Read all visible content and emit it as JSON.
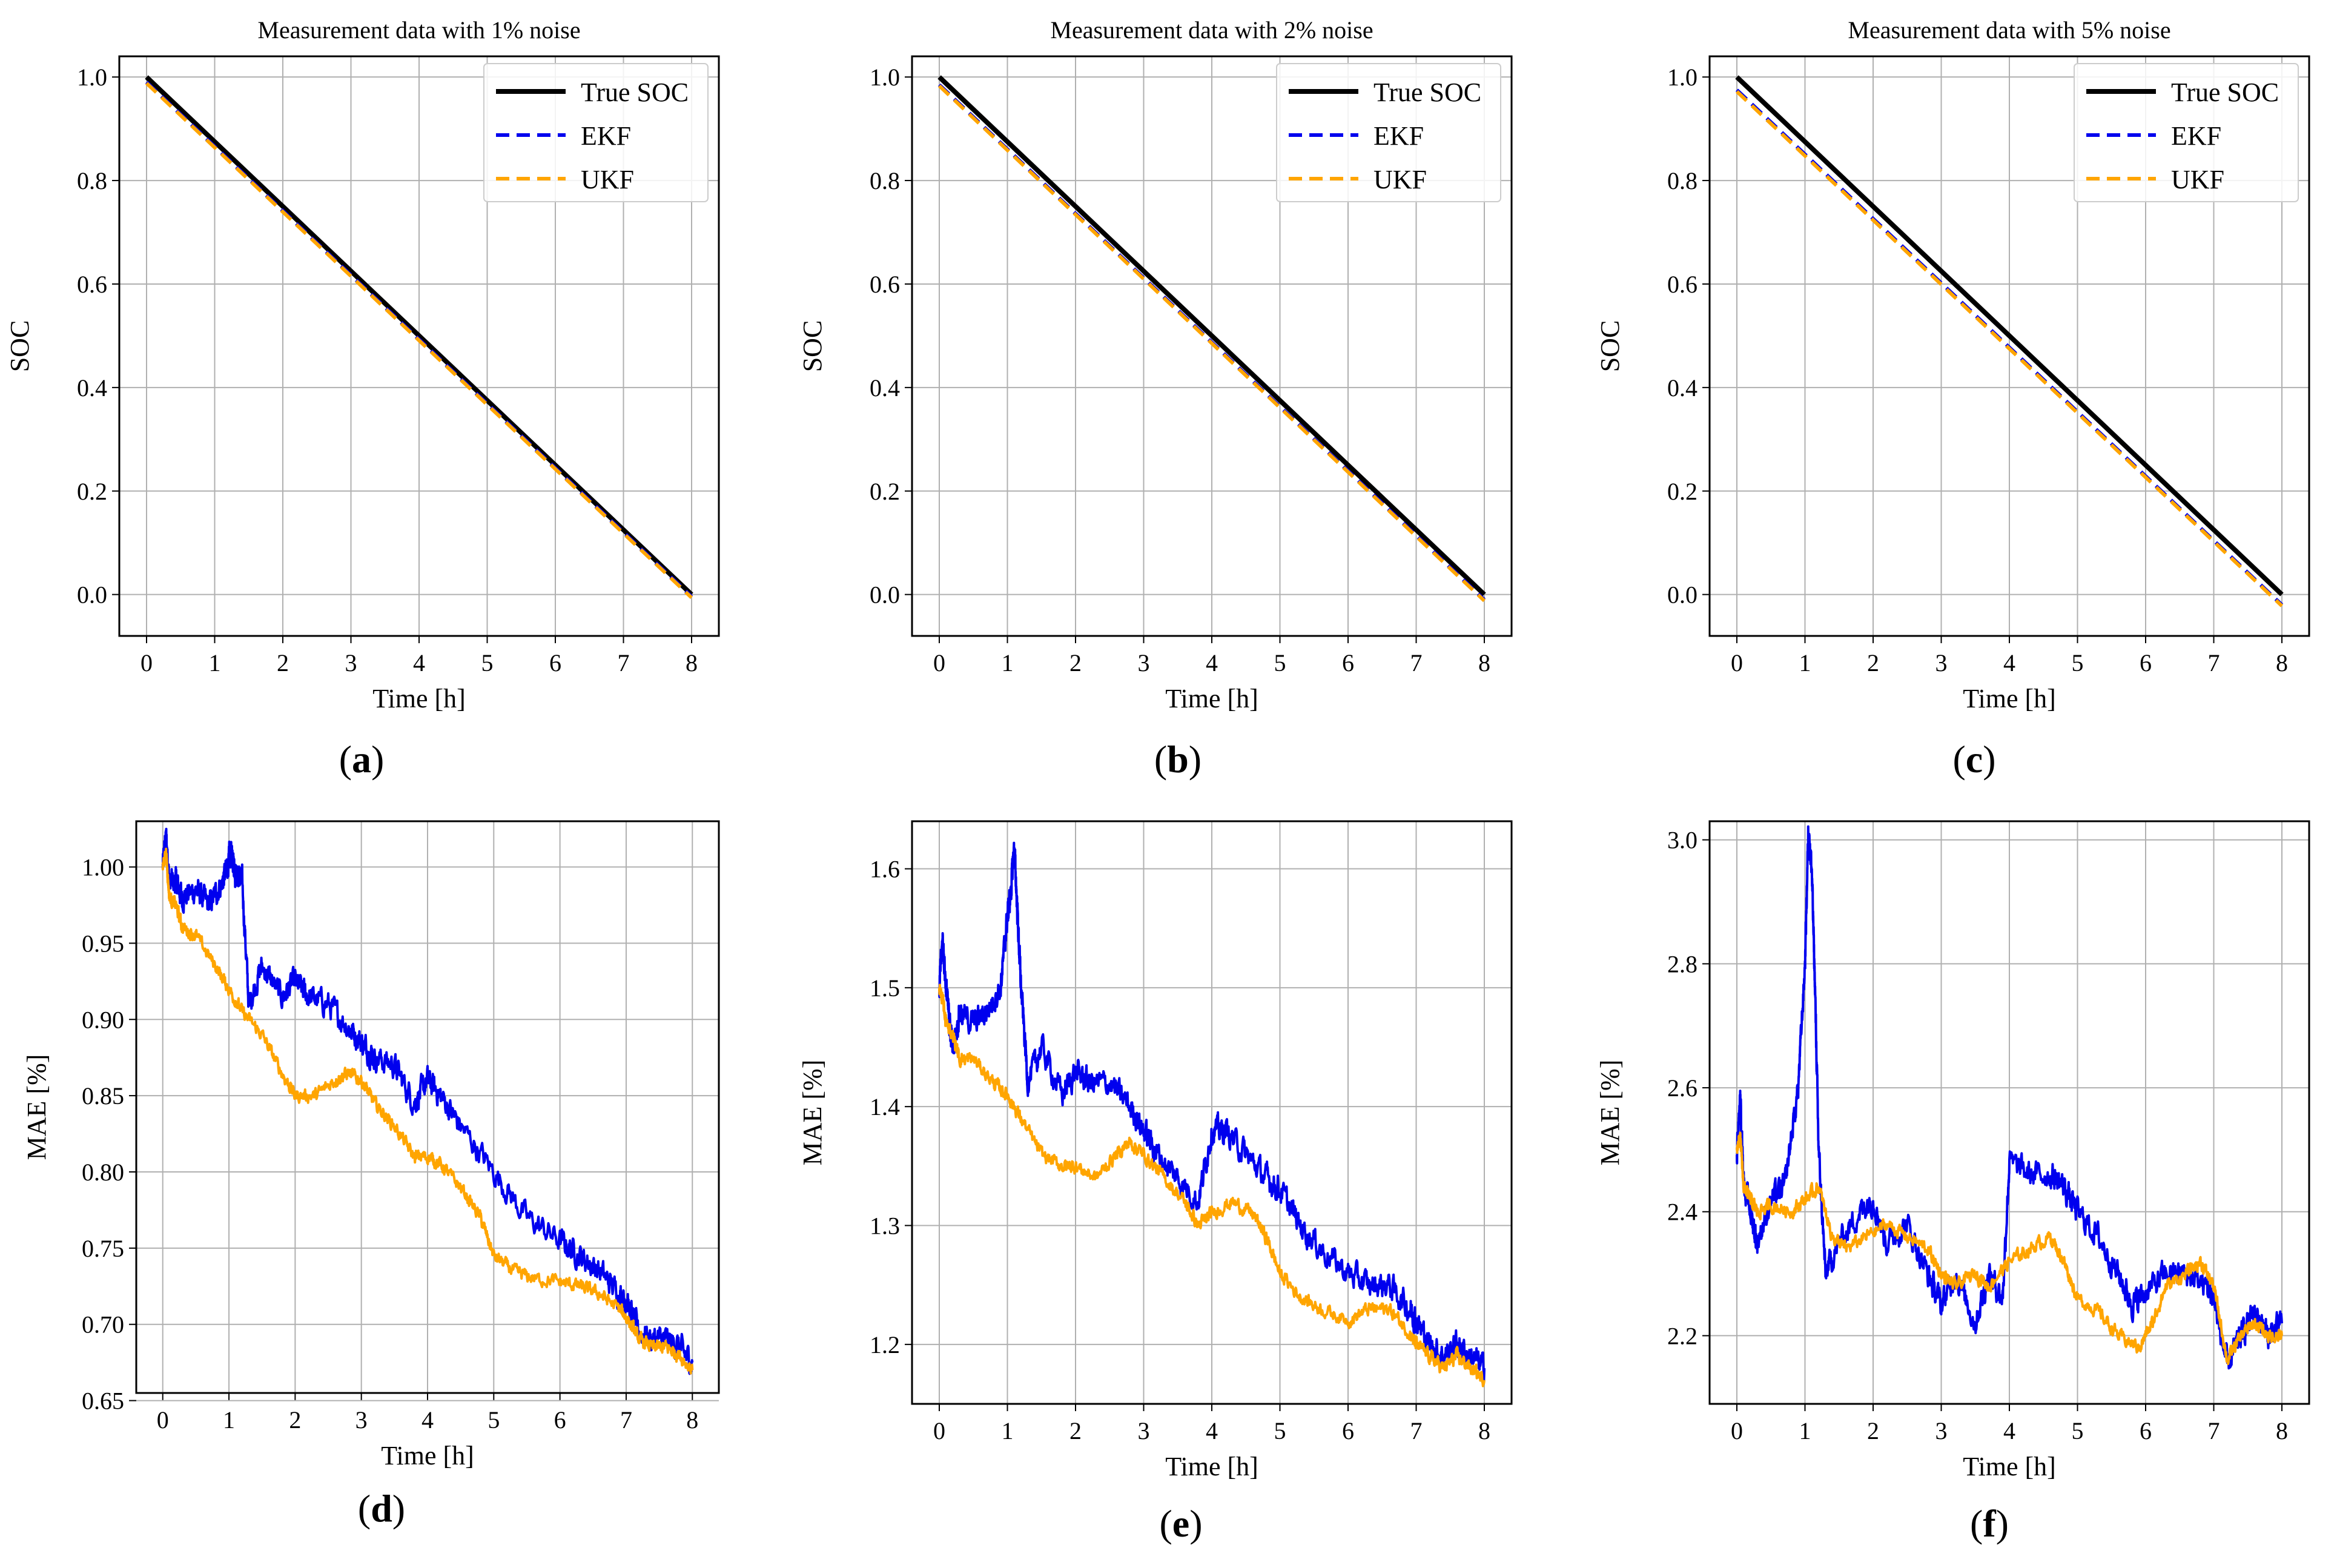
{
  "chart_data": [
    {
      "id": "a",
      "type": "line",
      "panel_label": "a",
      "title": "Measurement data with 1% noise",
      "xlabel": "Time [h]",
      "ylabel": "SOC",
      "xlim": [
        -0.4,
        8.4
      ],
      "ylim": [
        -0.08,
        1.04
      ],
      "xticks": [
        "0",
        "1",
        "2",
        "3",
        "4",
        "5",
        "6",
        "7",
        "8"
      ],
      "yticks": [
        "0.0",
        "0.2",
        "0.4",
        "0.6",
        "0.8",
        "1.0"
      ],
      "grid": true,
      "legend": "top-right",
      "series": [
        {
          "name": "True SOC",
          "color": "#000000",
          "style": "solid",
          "x": [
            0,
            8
          ],
          "y": [
            1.0,
            0.0
          ]
        },
        {
          "name": "EKF",
          "color": "#0000ee",
          "style": "dashed",
          "x": [
            0,
            8
          ],
          "y": [
            0.99,
            -0.004
          ]
        },
        {
          "name": "UKF",
          "color": "#ffa500",
          "style": "dashed",
          "x": [
            0,
            8
          ],
          "y": [
            0.988,
            -0.006
          ]
        }
      ]
    },
    {
      "id": "b",
      "type": "line",
      "panel_label": "b",
      "title": "Measurement data with 2% noise",
      "xlabel": "Time [h]",
      "ylabel": "SOC",
      "xlim": [
        -0.4,
        8.4
      ],
      "ylim": [
        -0.08,
        1.04
      ],
      "xticks": [
        "0",
        "1",
        "2",
        "3",
        "4",
        "5",
        "6",
        "7",
        "8"
      ],
      "yticks": [
        "0.0",
        "0.2",
        "0.4",
        "0.6",
        "0.8",
        "1.0"
      ],
      "grid": true,
      "legend": "top-right",
      "series": [
        {
          "name": "True SOC",
          "color": "#000000",
          "style": "solid",
          "x": [
            0,
            8
          ],
          "y": [
            1.0,
            0.0
          ]
        },
        {
          "name": "EKF",
          "color": "#0000ee",
          "style": "dashed",
          "x": [
            0,
            8
          ],
          "y": [
            0.985,
            -0.01
          ]
        },
        {
          "name": "UKF",
          "color": "#ffa500",
          "style": "dashed",
          "x": [
            0,
            8
          ],
          "y": [
            0.983,
            -0.012
          ]
        }
      ]
    },
    {
      "id": "c",
      "type": "line",
      "panel_label": "c",
      "title": "Measurement data with 5% noise",
      "xlabel": "Time [h]",
      "ylabel": "SOC",
      "xlim": [
        -0.4,
        8.4
      ],
      "ylim": [
        -0.08,
        1.04
      ],
      "xticks": [
        "0",
        "1",
        "2",
        "3",
        "4",
        "5",
        "6",
        "7",
        "8"
      ],
      "yticks": [
        "0.0",
        "0.2",
        "0.4",
        "0.6",
        "0.8",
        "1.0"
      ],
      "grid": true,
      "legend": "top-right",
      "series": [
        {
          "name": "True SOC",
          "color": "#000000",
          "style": "solid",
          "x": [
            0,
            8
          ],
          "y": [
            1.0,
            0.0
          ]
        },
        {
          "name": "EKF",
          "color": "#0000ee",
          "style": "dashed",
          "x": [
            0,
            8
          ],
          "y": [
            0.975,
            -0.02
          ]
        },
        {
          "name": "UKF",
          "color": "#ffa500",
          "style": "dashed",
          "x": [
            0,
            8
          ],
          "y": [
            0.972,
            -0.022
          ]
        }
      ]
    },
    {
      "id": "d",
      "type": "line",
      "panel_label": "d",
      "title": "",
      "xlabel": "Time [h]",
      "ylabel": "MAE [%]",
      "xlim": [
        -0.4,
        8.4
      ],
      "ylim": [
        0.655,
        1.03
      ],
      "xticks": [
        "0",
        "1",
        "2",
        "3",
        "4",
        "5",
        "6",
        "7",
        "8"
      ],
      "yticks": [
        "0.65",
        "0.70",
        "0.75",
        "0.80",
        "0.85",
        "0.90",
        "0.95",
        "1.00"
      ],
      "grid": true,
      "legend": "none",
      "series": [
        {
          "name": "EKF",
          "color": "#0000ee",
          "style": "solid",
          "x": [
            0,
            0.05,
            0.1,
            0.2,
            0.3,
            0.5,
            0.7,
            0.9,
            1.0,
            1.05,
            1.1,
            1.2,
            1.3,
            1.5,
            1.8,
            2.0,
            2.2,
            2.5,
            2.8,
            3.0,
            3.2,
            3.5,
            3.8,
            4.0,
            4.2,
            4.5,
            5.0,
            5.5,
            6.0,
            6.3,
            6.6,
            6.9,
            7.0,
            7.2,
            7.4,
            7.6,
            7.8,
            8.0
          ],
          "y": [
            1.0,
            1.02,
            0.99,
            0.99,
            0.98,
            0.985,
            0.975,
            0.99,
            1.005,
            1.01,
            0.995,
            0.99,
            0.91,
            0.935,
            0.915,
            0.925,
            0.915,
            0.91,
            0.895,
            0.885,
            0.875,
            0.87,
            0.845,
            0.86,
            0.85,
            0.83,
            0.8,
            0.77,
            0.755,
            0.745,
            0.735,
            0.72,
            0.715,
            0.695,
            0.69,
            0.69,
            0.685,
            0.675
          ]
        },
        {
          "name": "UKF",
          "color": "#ffa500",
          "style": "solid",
          "x": [
            0,
            0.05,
            0.1,
            0.2,
            0.3,
            0.5,
            0.8,
            1.0,
            1.2,
            1.5,
            1.8,
            2.0,
            2.3,
            2.6,
            2.8,
            3.0,
            3.2,
            3.5,
            3.8,
            4.0,
            4.2,
            4.5,
            4.8,
            5.0,
            5.3,
            5.6,
            6.0,
            6.3,
            6.6,
            6.9,
            7.0,
            7.2,
            7.4,
            7.6,
            7.8,
            8.0
          ],
          "y": [
            1.0,
            1.01,
            0.98,
            0.975,
            0.96,
            0.955,
            0.935,
            0.92,
            0.905,
            0.89,
            0.865,
            0.85,
            0.85,
            0.86,
            0.865,
            0.86,
            0.845,
            0.83,
            0.81,
            0.81,
            0.805,
            0.79,
            0.77,
            0.745,
            0.735,
            0.73,
            0.728,
            0.725,
            0.72,
            0.71,
            0.705,
            0.69,
            0.685,
            0.685,
            0.68,
            0.67
          ]
        }
      ]
    },
    {
      "id": "e",
      "type": "line",
      "panel_label": "e",
      "title": "",
      "xlabel": "Time [h]",
      "ylabel": "MAE [%]",
      "xlim": [
        -0.4,
        8.4
      ],
      "ylim": [
        1.15,
        1.64
      ],
      "xticks": [
        "0",
        "1",
        "2",
        "3",
        "4",
        "5",
        "6",
        "7",
        "8"
      ],
      "yticks": [
        "1.2",
        "1.3",
        "1.4",
        "1.5",
        "1.6"
      ],
      "grid": true,
      "legend": "none",
      "series": [
        {
          "name": "EKF",
          "color": "#0000ee",
          "style": "solid",
          "x": [
            0,
            0.05,
            0.1,
            0.15,
            0.2,
            0.3,
            0.5,
            0.7,
            0.9,
            1.0,
            1.05,
            1.1,
            1.15,
            1.2,
            1.3,
            1.5,
            1.8,
            2.0,
            2.2,
            2.5,
            2.8,
            3.0,
            3.2,
            3.5,
            3.8,
            4.0,
            4.2,
            4.5,
            4.8,
            5.0,
            5.3,
            5.6,
            6.0,
            6.3,
            6.6,
            6.9,
            7.0,
            7.2,
            7.4,
            7.6,
            7.8,
            8.0
          ],
          "y": [
            1.5,
            1.54,
            1.5,
            1.47,
            1.45,
            1.48,
            1.47,
            1.48,
            1.5,
            1.56,
            1.58,
            1.62,
            1.56,
            1.5,
            1.42,
            1.45,
            1.41,
            1.43,
            1.42,
            1.42,
            1.4,
            1.38,
            1.36,
            1.34,
            1.32,
            1.38,
            1.38,
            1.36,
            1.34,
            1.33,
            1.3,
            1.28,
            1.26,
            1.25,
            1.25,
            1.23,
            1.22,
            1.2,
            1.19,
            1.2,
            1.19,
            1.18
          ]
        },
        {
          "name": "UKF",
          "color": "#ffa500",
          "style": "solid",
          "x": [
            0,
            0.05,
            0.1,
            0.2,
            0.3,
            0.5,
            0.8,
            1.0,
            1.2,
            1.5,
            1.8,
            2.0,
            2.3,
            2.6,
            2.8,
            3.0,
            3.3,
            3.6,
            3.8,
            4.0,
            4.3,
            4.6,
            4.8,
            5.0,
            5.3,
            5.6,
            6.0,
            6.3,
            6.6,
            6.9,
            7.0,
            7.2,
            7.4,
            7.6,
            7.8,
            8.0
          ],
          "y": [
            1.5,
            1.49,
            1.47,
            1.46,
            1.44,
            1.44,
            1.42,
            1.41,
            1.39,
            1.36,
            1.35,
            1.35,
            1.34,
            1.36,
            1.37,
            1.36,
            1.34,
            1.32,
            1.3,
            1.31,
            1.32,
            1.31,
            1.29,
            1.26,
            1.24,
            1.23,
            1.22,
            1.23,
            1.23,
            1.21,
            1.2,
            1.19,
            1.18,
            1.19,
            1.18,
            1.17
          ]
        }
      ]
    },
    {
      "id": "f",
      "type": "line",
      "panel_label": "f",
      "title": "",
      "xlabel": "Time [h]",
      "ylabel": "MAE [%]",
      "xlim": [
        -0.4,
        8.4
      ],
      "ylim": [
        2.09,
        3.03
      ],
      "xticks": [
        "0",
        "1",
        "2",
        "3",
        "4",
        "5",
        "6",
        "7",
        "8"
      ],
      "yticks": [
        "2.2",
        "2.4",
        "2.6",
        "2.8",
        "3.0"
      ],
      "grid": true,
      "legend": "none",
      "series": [
        {
          "name": "EKF",
          "color": "#0000ee",
          "style": "solid",
          "x": [
            0,
            0.05,
            0.1,
            0.2,
            0.3,
            0.5,
            0.7,
            0.9,
            1.0,
            1.05,
            1.1,
            1.15,
            1.2,
            1.3,
            1.5,
            1.8,
            2.0,
            2.2,
            2.5,
            2.8,
            3.0,
            3.2,
            3.5,
            3.7,
            3.9,
            4.0,
            4.3,
            4.6,
            4.8,
            5.0,
            5.3,
            5.6,
            5.8,
            6.0,
            6.3,
            6.6,
            6.9,
            7.0,
            7.2,
            7.4,
            7.6,
            7.8,
            8.0
          ],
          "y": [
            2.5,
            2.58,
            2.45,
            2.4,
            2.35,
            2.42,
            2.44,
            2.6,
            2.8,
            3.02,
            2.95,
            2.75,
            2.5,
            2.3,
            2.35,
            2.4,
            2.42,
            2.35,
            2.38,
            2.3,
            2.25,
            2.3,
            2.22,
            2.3,
            2.26,
            2.48,
            2.46,
            2.46,
            2.44,
            2.4,
            2.36,
            2.3,
            2.25,
            2.27,
            2.3,
            2.3,
            2.28,
            2.26,
            2.15,
            2.2,
            2.24,
            2.2,
            2.22
          ]
        },
        {
          "name": "UKF",
          "color": "#ffa500",
          "style": "solid",
          "x": [
            0,
            0.05,
            0.1,
            0.2,
            0.3,
            0.5,
            0.8,
            1.0,
            1.2,
            1.4,
            1.6,
            1.9,
            2.2,
            2.5,
            2.8,
            3.0,
            3.2,
            3.5,
            3.7,
            4.0,
            4.3,
            4.6,
            4.8,
            5.0,
            5.3,
            5.6,
            5.9,
            6.1,
            6.3,
            6.6,
            6.8,
            7.0,
            7.2,
            7.4,
            7.6,
            7.8,
            8.0
          ],
          "y": [
            2.5,
            2.52,
            2.44,
            2.42,
            2.4,
            2.41,
            2.4,
            2.42,
            2.44,
            2.36,
            2.34,
            2.36,
            2.38,
            2.36,
            2.34,
            2.3,
            2.28,
            2.3,
            2.28,
            2.32,
            2.34,
            2.36,
            2.32,
            2.26,
            2.24,
            2.2,
            2.18,
            2.22,
            2.28,
            2.3,
            2.32,
            2.28,
            2.16,
            2.2,
            2.22,
            2.2,
            2.2
          ]
        }
      ]
    }
  ]
}
